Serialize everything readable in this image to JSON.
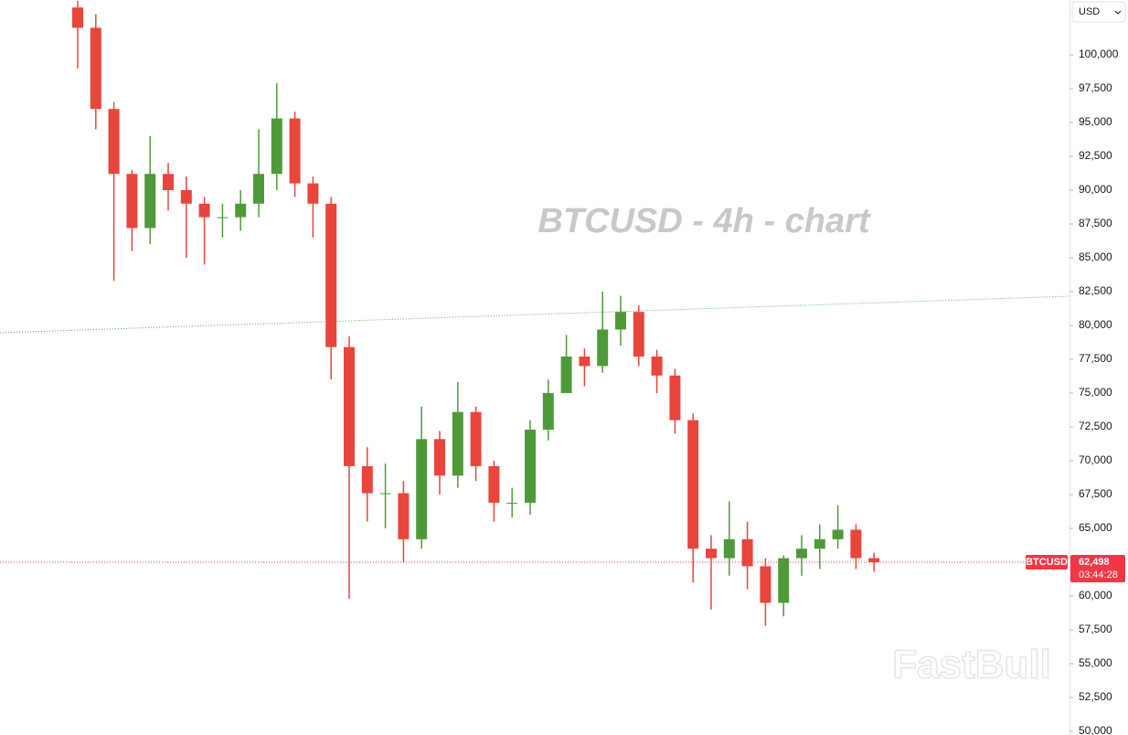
{
  "chart_data": {
    "type": "candlestick",
    "watermark": "BTCUSD - 4h - chart",
    "brand": "FastBull",
    "currency": "USD",
    "up_color": "#4e9a3a",
    "down_color": "#e8453c",
    "ylim": [
      49730,
      104054
    ],
    "yticks": [
      {
        "value": 50000,
        "label": "50,000"
      },
      {
        "value": 52500,
        "label": "52,500"
      },
      {
        "value": 55000,
        "label": "55,000"
      },
      {
        "value": 57500,
        "label": "57,500"
      },
      {
        "value": 60000,
        "label": "60,000"
      },
      {
        "value": 62500,
        "label": "62,500"
      },
      {
        "value": 65000,
        "label": "65,000"
      },
      {
        "value": 67500,
        "label": "67,500"
      },
      {
        "value": 70000,
        "label": "70,000"
      },
      {
        "value": 72500,
        "label": "72,500"
      },
      {
        "value": 75000,
        "label": "75,000"
      },
      {
        "value": 77500,
        "label": "77,500"
      },
      {
        "value": 80000,
        "label": "80,000"
      },
      {
        "value": 82500,
        "label": "82,500"
      },
      {
        "value": 85000,
        "label": "85,000"
      },
      {
        "value": 87500,
        "label": "87,500"
      },
      {
        "value": 90000,
        "label": "90,000"
      },
      {
        "value": 92500,
        "label": "92,500"
      },
      {
        "value": 95000,
        "label": "95,000"
      },
      {
        "value": 97500,
        "label": "97,500"
      },
      {
        "value": 100000,
        "label": "100,000"
      }
    ],
    "open": [
      103500,
      102000,
      96000,
      91200,
      87200,
      91200,
      90000,
      89000,
      88000,
      88000,
      89000,
      91200,
      95300,
      90500,
      89000,
      78400,
      69600,
      67600,
      67600,
      64200,
      71600,
      68900,
      73600,
      69600,
      66900,
      66900,
      72300,
      75000,
      77700,
      77000,
      79700,
      81000,
      77700,
      76300,
      73000,
      63500,
      62800,
      64200,
      62200,
      59500,
      62800,
      63500,
      64200,
      64900,
      62800
    ],
    "high": [
      104000,
      103000,
      96500,
      91500,
      94000,
      92000,
      91000,
      89500,
      89000,
      90000,
      94500,
      97900,
      95800,
      91000,
      89500,
      79200,
      71000,
      69800,
      68500,
      74000,
      72200,
      75800,
      74000,
      70000,
      68000,
      73000,
      76000,
      79300,
      78300,
      82500,
      82200,
      81500,
      78200,
      76800,
      73500,
      64500,
      67000,
      65500,
      62800,
      63000,
      64500,
      65300,
      66700,
      65300,
      63200
    ],
    "low": [
      99000,
      94500,
      83300,
      85500,
      86000,
      88500,
      85000,
      84500,
      86500,
      87000,
      88000,
      90000,
      89500,
      86500,
      76000,
      59800,
      65500,
      65000,
      62500,
      63500,
      67500,
      68000,
      68500,
      65500,
      65800,
      66000,
      71500,
      75000,
      75500,
      76500,
      78500,
      77000,
      75000,
      72000,
      61000,
      59000,
      61500,
      60500,
      57800,
      58500,
      61500,
      62000,
      63500,
      62000,
      61800
    ],
    "close": [
      102000,
      96000,
      91200,
      87200,
      91200,
      90000,
      89000,
      88000,
      88000,
      89000,
      91200,
      95300,
      90500,
      89000,
      78400,
      69600,
      67600,
      67600,
      64200,
      71600,
      68900,
      73600,
      69600,
      66900,
      66900,
      72300,
      75000,
      77700,
      77000,
      79700,
      81000,
      77700,
      76300,
      73000,
      63500,
      62800,
      64200,
      62200,
      59500,
      62800,
      63500,
      64200,
      64900,
      62800,
      62498
    ],
    "last_price": {
      "symbol": "BTCUSD",
      "value": 62498,
      "label": "62,498",
      "countdown": "03:44:28",
      "color": "#f23645"
    },
    "trendline": {
      "start": 79460,
      "end": 82162,
      "color": "#4caf50"
    }
  }
}
